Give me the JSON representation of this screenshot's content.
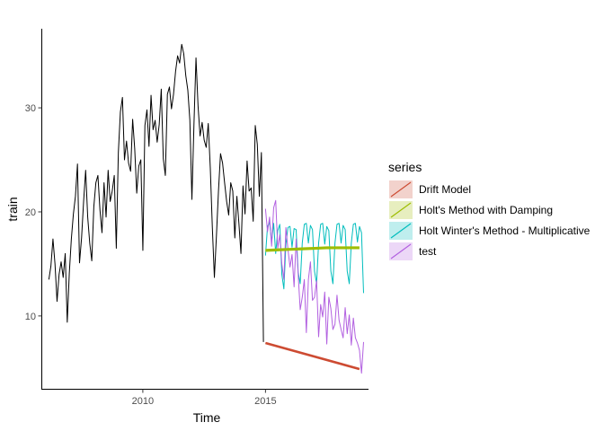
{
  "chart_data": {
    "type": "line",
    "xlabel": "Time",
    "ylabel": "train",
    "xlim": [
      2005.9,
      2019.2
    ],
    "ylim": [
      3.0,
      37.6
    ],
    "x_ticks": [
      2010,
      2015
    ],
    "y_ticks": [
      10,
      20,
      30
    ],
    "grid": false,
    "legend": {
      "title": "series",
      "placement": "right",
      "entries": [
        {
          "label": "Drift Model",
          "color": "#cd4b32"
        },
        {
          "label": "Holt's Method with Damping",
          "color": "#9ebd00"
        },
        {
          "label": "Holt Winter's Method - Multiplicative",
          "color": "#00bdbd"
        },
        {
          "label": "test",
          "color": "#b260e0"
        }
      ]
    },
    "series": [
      {
        "name": "train",
        "color": "#000000",
        "x_start": 2006.17,
        "x_step": 0.0833,
        "values": [
          13.5,
          14.8,
          17.4,
          15.0,
          11.4,
          14.0,
          15.2,
          13.7,
          16.0,
          9.4,
          14.1,
          17.4,
          19.8,
          21.5,
          24.6,
          15.1,
          17.5,
          21.0,
          24.0,
          19.5,
          17.0,
          15.3,
          20.5,
          22.8,
          23.5,
          20.2,
          18.0,
          22.8,
          19.5,
          24.0,
          21.0,
          22.0,
          23.5,
          16.5,
          25.7,
          29.6,
          31.0,
          25.0,
          26.8,
          24.7,
          23.9,
          28.9,
          26.1,
          21.8,
          24.4,
          25.0,
          16.3,
          28.3,
          29.8,
          26.3,
          31.2,
          27.9,
          28.8,
          26.7,
          28.4,
          31.8,
          25.1,
          23.5,
          31.3,
          32.0,
          29.9,
          31.3,
          33.5,
          35.0,
          34.3,
          36.1,
          35.2,
          33.1,
          31.7,
          28.8,
          21.2,
          28.4,
          34.8,
          30.2,
          27.3,
          28.6,
          26.9,
          26.2,
          28.5,
          24.2,
          18.5,
          13.7,
          17.7,
          22.0,
          25.6,
          24.7,
          22.8,
          21.0,
          19.7,
          22.8,
          22.0,
          17.5,
          21.5,
          18.9,
          16.0,
          22.5,
          19.8,
          24.9,
          22.0,
          22.3,
          19.1,
          28.3,
          26.5,
          21.5,
          25.7,
          7.5
        ]
      },
      {
        "name": "Drift Model",
        "color": "#cd4b32",
        "x": [
          2015.0,
          2018.83
        ],
        "values": [
          7.4,
          4.9
        ]
      },
      {
        "name": "Holt's Method with Damping",
        "color": "#9ebd00",
        "x": [
          2015.0,
          2015.5,
          2016.0,
          2016.5,
          2017.0,
          2017.5,
          2018.0,
          2018.83
        ],
        "values": [
          16.3,
          16.35,
          16.4,
          16.45,
          16.5,
          16.55,
          16.55,
          16.55
        ]
      },
      {
        "name": "Holt Winter's Method - Multiplicative",
        "color": "#00bdbd",
        "x_start": 2015.0,
        "x_step": 0.0833,
        "values": [
          15.8,
          18.6,
          19.0,
          17.1,
          18.9,
          16.0,
          18.2,
          18.8,
          14.0,
          12.6,
          16.9,
          18.5,
          18.6,
          16.6,
          18.4,
          18.3,
          14.2,
          13.1,
          17.0,
          18.8,
          18.9,
          17.0,
          18.7,
          18.3,
          14.3,
          13.1,
          17.0,
          18.8,
          18.9,
          16.9,
          18.6,
          18.2,
          14.3,
          13.1,
          17.0,
          18.8,
          18.9,
          17.0,
          18.7,
          18.3,
          14.3,
          13.1,
          17.0,
          18.8,
          18.9,
          17.1,
          18.6,
          18.0,
          12.2
        ]
      },
      {
        "name": "test",
        "color": "#b260e0",
        "x_start": 2015.0,
        "x_step": 0.0833,
        "values": [
          20.3,
          18.1,
          19.5,
          16.7,
          20.4,
          21.1,
          16.5,
          17.8,
          15.0,
          13.5,
          18.5,
          16.4,
          14.7,
          15.9,
          12.8,
          17.4,
          14.0,
          10.6,
          11.8,
          13.5,
          8.4,
          13.5,
          15.2,
          11.5,
          11.8,
          13.4,
          8.0,
          11.1,
          9.9,
          12.3,
          7.3,
          11.8,
          10.7,
          8.7,
          9.2,
          12.0,
          9.6,
          8.7,
          7.9,
          10.8,
          8.3,
          10.1,
          7.2,
          9.8,
          7.9,
          7.4,
          6.7,
          4.5,
          7.5
        ]
      }
    ]
  }
}
